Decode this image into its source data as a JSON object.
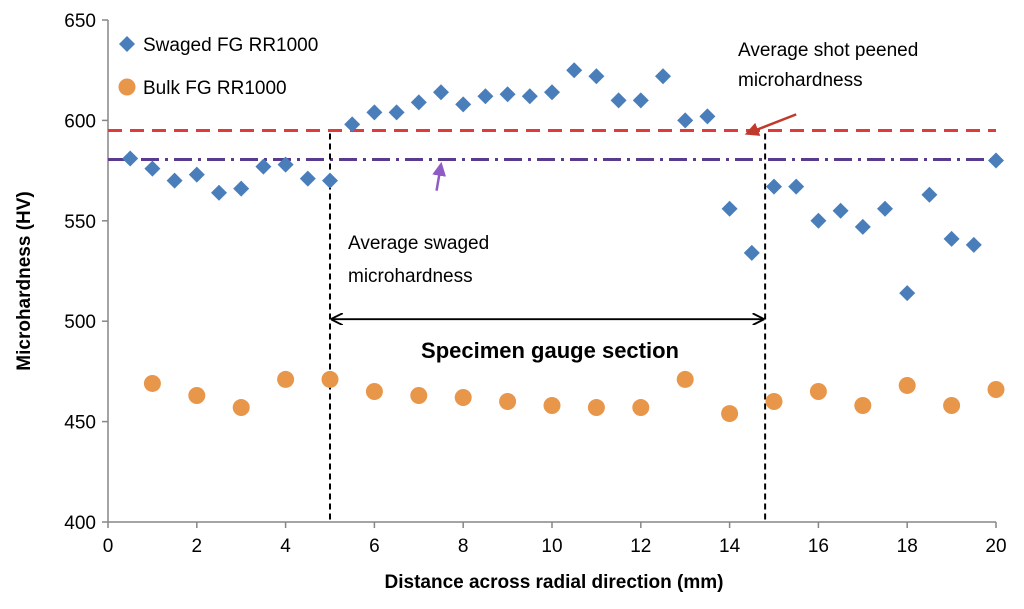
{
  "chart_data": {
    "type": "scatter",
    "xlabel": "Distance across radial direction (mm)",
    "ylabel": "Microhardness (HV)",
    "xlim": [
      0,
      20
    ],
    "ylim": [
      400,
      650
    ],
    "x_ticks": [
      0,
      2,
      4,
      6,
      8,
      10,
      12,
      14,
      16,
      18,
      20
    ],
    "y_ticks": [
      400,
      450,
      500,
      550,
      600,
      650
    ],
    "grid": false,
    "legend_position": "top-left",
    "series": [
      {
        "name": "Swaged FG RR1000",
        "marker": "diamond",
        "color": "#4a7ebb",
        "x": [
          0.5,
          1,
          1.5,
          2,
          2.5,
          3,
          3.5,
          4,
          4.5,
          5,
          5.5,
          6,
          6.5,
          7,
          7.5,
          8,
          8.5,
          9,
          9.5,
          10,
          10.5,
          11,
          11.5,
          12,
          12.5,
          13,
          13.5,
          14,
          14.5,
          15,
          15.5,
          16,
          16.5,
          17,
          17.5,
          18,
          18.5,
          19,
          19.5,
          20
        ],
        "y": [
          581,
          576,
          570,
          573,
          564,
          566,
          577,
          578,
          571,
          570,
          598,
          604,
          604,
          609,
          614,
          608,
          612,
          613,
          612,
          614,
          625,
          622,
          610,
          610,
          622,
          600,
          602,
          556,
          534,
          567,
          567,
          550,
          555,
          547,
          556,
          514,
          563,
          541,
          538,
          580
        ]
      },
      {
        "name": "Bulk FG RR1000",
        "marker": "circle",
        "color": "#e8964a",
        "x": [
          1,
          2,
          3,
          4,
          5,
          6,
          7,
          8,
          9,
          10,
          11,
          12,
          13,
          14,
          15,
          16,
          17,
          18,
          19,
          20
        ],
        "y": [
          469,
          463,
          457,
          471,
          471,
          465,
          463,
          462,
          460,
          458,
          457,
          457,
          471,
          454,
          460,
          465,
          458,
          468,
          458,
          466
        ]
      }
    ],
    "reference_lines": [
      {
        "name": "Average shot peened microhardness",
        "y": 595,
        "color": "#e03a3a",
        "style": "dashed"
      },
      {
        "name": "Average swaged microhardness",
        "y": 580.5,
        "color": "#5a3a8f",
        "style": "dashdot"
      }
    ],
    "vertical_lines": [
      {
        "x": 5,
        "color": "#000000",
        "style": "dashed"
      },
      {
        "x": 14.8,
        "color": "#000000",
        "style": "dashed"
      }
    ],
    "annotations": {
      "shot_peened_line1": "Average shot peened",
      "shot_peened_line2": "microhardness",
      "swaged_line1": "Average swaged",
      "swaged_line2": "microhardness",
      "gauge_section": "Specimen gauge section"
    },
    "gauge_span": [
      5,
      14.8
    ],
    "arrow_shot_peened": {
      "from": [
        15.5,
        603
      ],
      "to": [
        14.4,
        595
      ]
    },
    "arrow_swaged": {
      "from": [
        7.4,
        565
      ],
      "to": [
        7.5,
        578
      ]
    }
  }
}
